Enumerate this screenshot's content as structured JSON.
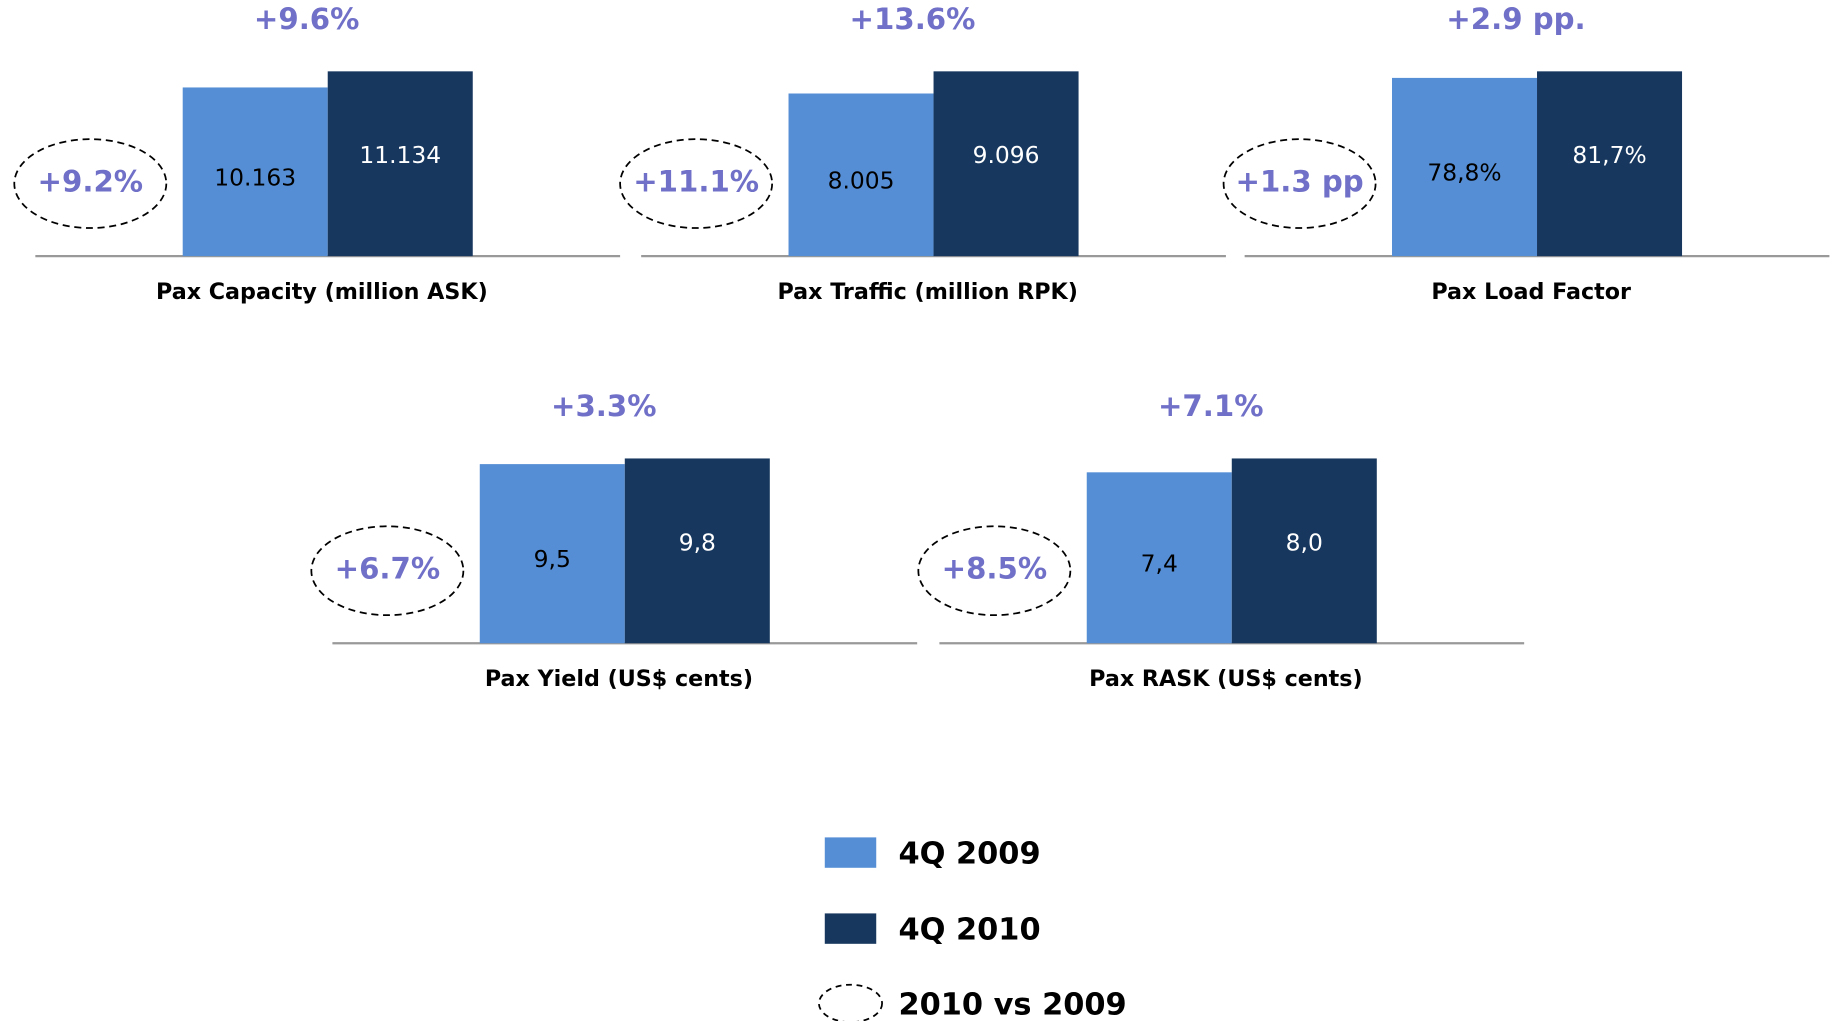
{
  "chart_data": [
    {
      "type": "bar",
      "title": "Pax Capacity (million ASK)",
      "annotation": "+9.6%",
      "comparison": "+9.2%",
      "series": [
        {
          "name": "4Q 2009",
          "color": "#558ed5",
          "values": [
            10163
          ],
          "value_labels": [
            "10.163"
          ]
        },
        {
          "name": "4Q 2010",
          "color": "#17375e",
          "values": [
            11134
          ],
          "value_labels": [
            "11.134"
          ]
        }
      ]
    },
    {
      "type": "bar",
      "title": "Pax Traffic (million RPK)",
      "annotation": "+13.6%",
      "comparison": "+11.1%",
      "series": [
        {
          "name": "4Q 2009",
          "color": "#558ed5",
          "values": [
            8005
          ],
          "value_labels": [
            "8.005"
          ]
        },
        {
          "name": "4Q 2010",
          "color": "#17375e",
          "values": [
            9096
          ],
          "value_labels": [
            "9.096"
          ]
        }
      ]
    },
    {
      "type": "bar",
      "title": "Pax Load Factor",
      "annotation": "+2.9 pp.",
      "comparison": "+1.3 pp",
      "series": [
        {
          "name": "4Q 2009",
          "color": "#558ed5",
          "values": [
            78.8
          ],
          "value_labels": [
            "78,8%"
          ]
        },
        {
          "name": "4Q 2010",
          "color": "#17375e",
          "values": [
            81.7
          ],
          "value_labels": [
            "81,7%"
          ]
        }
      ]
    },
    {
      "type": "bar",
      "title": "Pax Yield (US$ cents)",
      "annotation": "+3.3%",
      "comparison": "+6.7%",
      "series": [
        {
          "name": "4Q 2009",
          "color": "#558ed5",
          "values": [
            9.5
          ],
          "value_labels": [
            "9,5"
          ]
        },
        {
          "name": "4Q 2010",
          "color": "#17375e",
          "values": [
            9.8
          ],
          "value_labels": [
            "9,8"
          ]
        }
      ]
    },
    {
      "type": "bar",
      "title": "Pax RASK (US$ cents)",
      "annotation": "+7.1%",
      "comparison": "+8.5%",
      "series": [
        {
          "name": "4Q 2009",
          "color": "#558ed5",
          "values": [
            7.4
          ],
          "value_labels": [
            "7,4"
          ]
        },
        {
          "name": "4Q 2010",
          "color": "#17375e",
          "values": [
            8.0
          ],
          "value_labels": [
            "8,0"
          ]
        }
      ]
    }
  ],
  "legend": {
    "comparison": "2010 vs 2009"
  }
}
